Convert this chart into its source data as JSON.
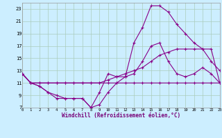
{
  "background_color": "#cceeff",
  "grid_color": "#aaccbb",
  "line_color": "#880088",
  "xlabel": "Windchill (Refroidissement éolien,°C)",
  "xlim": [
    0,
    23
  ],
  "ylim": [
    7,
    24
  ],
  "yticks": [
    7,
    9,
    11,
    13,
    15,
    17,
    19,
    21,
    23
  ],
  "xticks": [
    0,
    1,
    2,
    3,
    4,
    5,
    6,
    7,
    8,
    9,
    10,
    11,
    12,
    13,
    14,
    15,
    16,
    17,
    18,
    19,
    20,
    21,
    22,
    23
  ],
  "line1_x": [
    0,
    1,
    2,
    3,
    4,
    5,
    6,
    7,
    8,
    9,
    10,
    11,
    12,
    13,
    14,
    15,
    16,
    17,
    18,
    19,
    20,
    21,
    22,
    23
  ],
  "line1_y": [
    12.5,
    11.0,
    10.5,
    9.5,
    8.5,
    8.5,
    8.5,
    8.5,
    7.0,
    9.5,
    12.5,
    12.0,
    12.0,
    12.5,
    14.5,
    17.0,
    17.5,
    14.5,
    12.5,
    12.0,
    12.5,
    13.5,
    12.5,
    11.0
  ],
  "line2_x": [
    0,
    1,
    2,
    3,
    4,
    5,
    6,
    7,
    8,
    9,
    10,
    11,
    12,
    13,
    14,
    15,
    16,
    17,
    18,
    19,
    20,
    21,
    22,
    23
  ],
  "line2_y": [
    12.5,
    11.0,
    10.5,
    9.5,
    9.0,
    8.5,
    8.5,
    8.5,
    7.0,
    7.5,
    9.5,
    11.0,
    12.0,
    17.5,
    20.0,
    23.5,
    23.5,
    22.5,
    20.5,
    19.0,
    17.5,
    16.5,
    14.5,
    13.0
  ],
  "line3_x": [
    0,
    1,
    2,
    3,
    4,
    5,
    6,
    7,
    8,
    9,
    10,
    11,
    12,
    13,
    14,
    15,
    16,
    17,
    18,
    19,
    20,
    21,
    22,
    23
  ],
  "line3_y": [
    12.5,
    11.0,
    11.0,
    11.0,
    11.0,
    11.0,
    11.0,
    11.0,
    11.0,
    11.0,
    11.5,
    12.0,
    12.5,
    13.0,
    13.5,
    14.5,
    15.5,
    16.0,
    16.5,
    16.5,
    16.5,
    16.5,
    16.5,
    11.0
  ],
  "line4_x": [
    0,
    1,
    2,
    3,
    4,
    5,
    6,
    7,
    8,
    9,
    10,
    11,
    12,
    13,
    14,
    15,
    16,
    17,
    18,
    19,
    20,
    21,
    22,
    23
  ],
  "line4_y": [
    12.5,
    11.0,
    11.0,
    11.0,
    11.0,
    11.0,
    11.0,
    11.0,
    11.0,
    11.0,
    11.0,
    11.0,
    11.0,
    11.0,
    11.0,
    11.0,
    11.0,
    11.0,
    11.0,
    11.0,
    11.0,
    11.0,
    11.0,
    11.0
  ]
}
